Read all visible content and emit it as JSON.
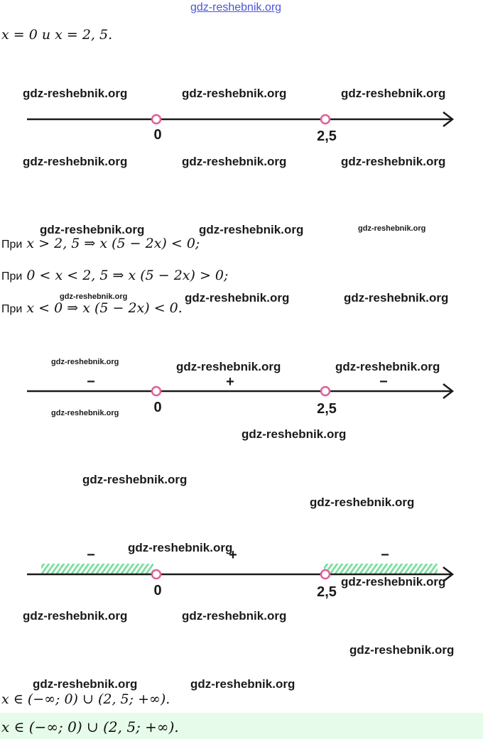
{
  "header_watermark": "gdz-reshebnik.org",
  "roots_line": {
    "text": "x = 0 и x = 2, 5."
  },
  "number_line_1": {
    "point_a": "0",
    "point_b": "2,5"
  },
  "sign_rules": [
    {
      "prefix": "При",
      "text": "x > 2, 5  ⇒ x (5 − 2x) < 0;"
    },
    {
      "prefix": "При",
      "text": "0 < x < 2, 5  ⇒ x (5 − 2x) > 0;"
    },
    {
      "prefix": "При",
      "text": "x < 0  ⇒ x (5 − 2x) < 0."
    }
  ],
  "number_line_2": {
    "point_a": "0",
    "point_b": "2,5",
    "sign_left": "−",
    "sign_middle": "+",
    "sign_right": "−"
  },
  "number_line_3": {
    "point_a": "0",
    "point_b": "2,5",
    "sign_left": "−",
    "sign_middle": "+",
    "sign_right": "−",
    "hatch_color": "#7ee0a0"
  },
  "answer_line": "x ∈ (−∞;  0) ∪ (2, 5;  +∞).",
  "answer_highlight": "x ∈ (−∞;  0) ∪ (2, 5;  +∞).",
  "watermarks": {
    "w1": "gdz-reshebnik.org",
    "w2": "gdz-reshebnik.org",
    "w3": "gdz-reshebnik.org",
    "w4": "gdz-reshebnik.org",
    "w5": "gdz-reshebnik.org",
    "w6": "gdz-reshebnik.org",
    "w7": "gdz-reshebnik.org",
    "w8": "gdz-reshebnik.org",
    "w9": "gdz-reshebnik.org",
    "w10": "gdz-reshebnik.org",
    "w11": "gdz-reshebnik.org",
    "w12": "gdz-reshebnik.org",
    "w13": "gdz-reshebnik.org",
    "w14": "gdz-reshebnik.org",
    "w15": "gdz-reshebnik.org",
    "w16": "gdz-reshebnik.org",
    "w17": "gdz-reshebnik.org",
    "w18": "gdz-reshebnik.org",
    "w19": "gdz-reshebnik.org",
    "w20": "gdz-reshebnik.org",
    "w21": "gdz-reshebnik.org",
    "w22": "gdz-reshebnik.org",
    "w23": "gdz-reshebnik.org",
    "w24": "gdz-reshebnik.org",
    "w25": "gdz-reshebnik.org"
  }
}
